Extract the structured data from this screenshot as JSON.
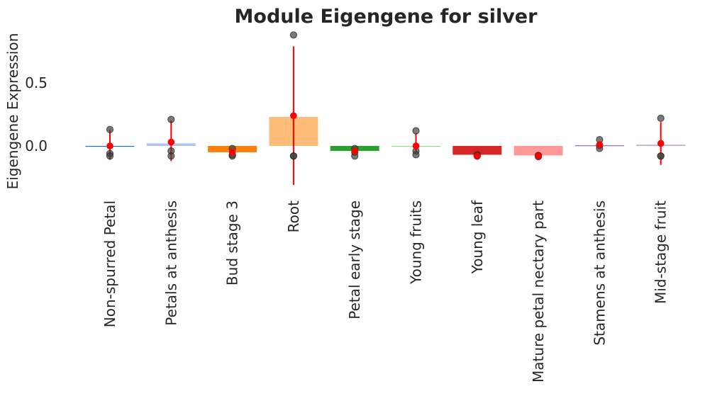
{
  "chart_data": {
    "type": "bar",
    "title": "Module Eigengene for silver",
    "xlabel": "",
    "ylabel": "Eigengene Expression",
    "ylim": [
      -0.33,
      0.93
    ],
    "yticks": [
      0.0,
      0.5
    ],
    "ytick_labels": [
      "0.0",
      "0.5"
    ],
    "grid": false,
    "categories": [
      "Non-spurred Petal",
      "Petals at anthesis",
      "Bud stage 3",
      "Root",
      "Petal early stage",
      "Young fruits",
      "Young leaf",
      "Mature petal nectary part",
      "Stamens at anthesis",
      "Mid-stage fruit"
    ],
    "values": [
      0.0,
      0.02,
      -0.05,
      0.23,
      -0.04,
      0.0,
      -0.07,
      -0.075,
      0.005,
      0.01
    ],
    "bar_colors": [
      "#1f77b4",
      "#aec7e8",
      "#ff7f0e",
      "#ffbb78",
      "#2ca02c",
      "#98df8a",
      "#d62728",
      "#ff9896",
      "#9467bd",
      "#c5b0d5"
    ],
    "points": [
      [
        0.13,
        -0.06,
        -0.08
      ],
      [
        0.21,
        -0.04,
        -0.08
      ],
      [
        -0.02,
        -0.07,
        -0.08
      ],
      [
        0.88,
        -0.08,
        -0.08
      ],
      [
        -0.02,
        -0.05,
        -0.08
      ],
      [
        0.12,
        -0.04,
        -0.07
      ],
      [
        -0.07,
        -0.08,
        -0.08
      ],
      [
        -0.075,
        -0.08,
        -0.085
      ],
      [
        0.05,
        0.005,
        -0.02
      ],
      [
        0.22,
        -0.08,
        -0.08
      ]
    ],
    "means": [
      0.0,
      0.03,
      -0.05,
      0.24,
      -0.04,
      0.0,
      -0.08,
      -0.08,
      0.01,
      0.02
    ],
    "error_low": [
      -0.11,
      -0.12,
      -0.07,
      -0.31,
      -0.06,
      -0.05,
      -0.08,
      -0.085,
      -0.01,
      -0.15
    ],
    "error_high": [
      0.13,
      0.2,
      -0.03,
      0.79,
      -0.02,
      0.1,
      -0.07,
      -0.075,
      0.03,
      0.19
    ],
    "point_color": "#404040",
    "mean_color": "#ff0000"
  }
}
